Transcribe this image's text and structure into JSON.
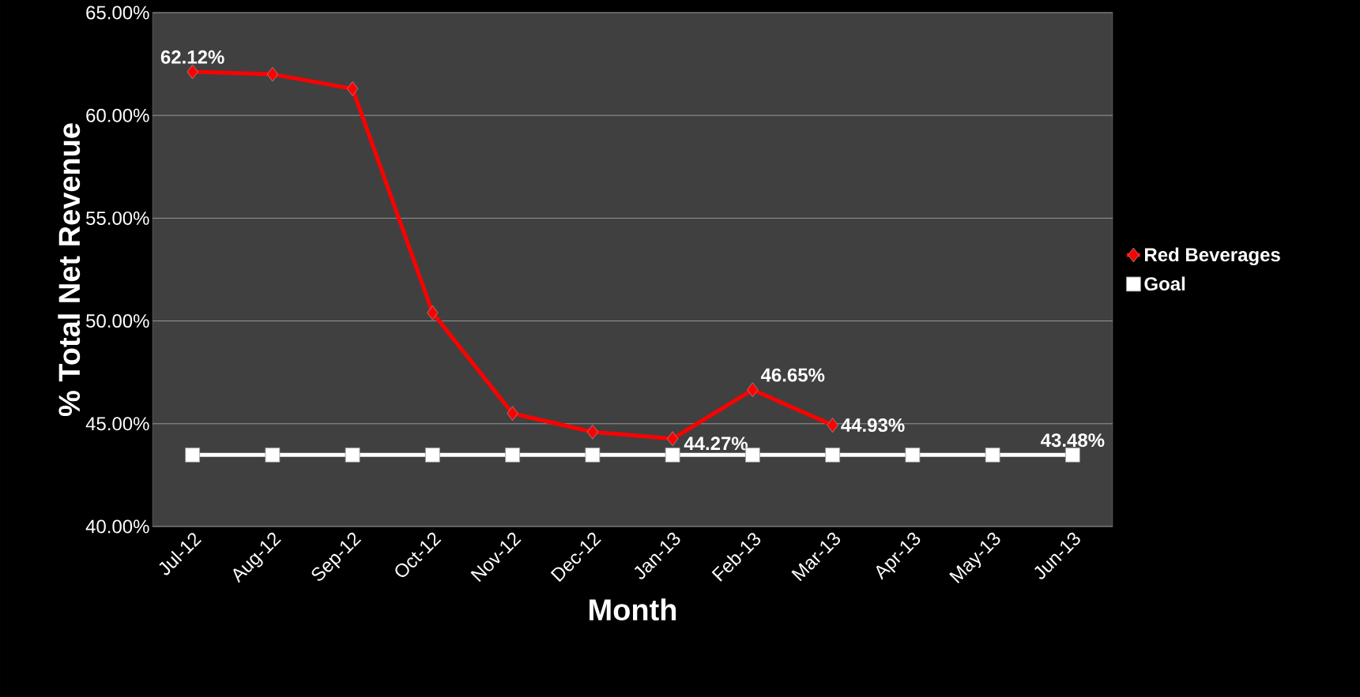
{
  "chart_data": {
    "type": "line",
    "xlabel": "Month",
    "ylabel": "% Total Net Revenue",
    "categories": [
      "Jul-12",
      "Aug-12",
      "Sep-12",
      "Oct-12",
      "Nov-12",
      "Dec-12",
      "Jan-13",
      "Feb-13",
      "Mar-13",
      "Apr-13",
      "May-13",
      "Jun-13"
    ],
    "ylim": [
      40,
      65
    ],
    "yticks": [
      {
        "value": 40,
        "label": "40.00%"
      },
      {
        "value": 45,
        "label": "45.00%"
      },
      {
        "value": 50,
        "label": "50.00%"
      },
      {
        "value": 55,
        "label": "55.00%"
      },
      {
        "value": 60,
        "label": "60.00%"
      },
      {
        "value": 65,
        "label": "65.00%"
      }
    ],
    "grid": "y",
    "legend": "right",
    "series": [
      {
        "name": "Red Beverages",
        "color": "#ff0000",
        "marker": "diamond",
        "values": [
          62.12,
          62.0,
          61.3,
          50.4,
          45.5,
          44.6,
          44.27,
          46.65,
          44.93,
          null,
          null,
          null
        ],
        "value_labels": [
          "62.12%",
          null,
          null,
          null,
          null,
          null,
          "44.27%",
          "46.65%",
          "44.93%",
          null,
          null,
          null
        ]
      },
      {
        "name": "Goal",
        "color": "#ffffff",
        "marker": "square",
        "values": [
          43.48,
          43.48,
          43.48,
          43.48,
          43.48,
          43.48,
          43.48,
          43.48,
          43.48,
          43.48,
          43.48,
          43.48
        ],
        "value_labels": [
          null,
          null,
          null,
          null,
          null,
          null,
          null,
          null,
          null,
          null,
          null,
          "43.48%"
        ]
      }
    ]
  }
}
